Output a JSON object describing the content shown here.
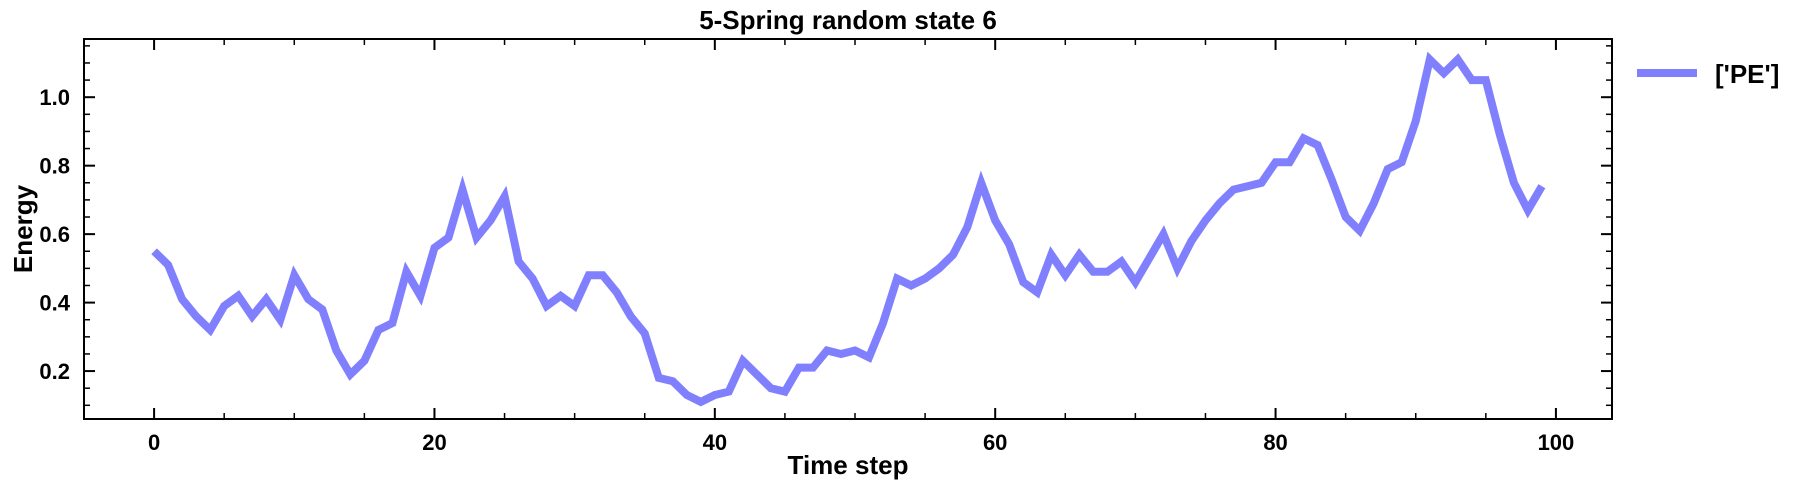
{
  "chart_data": {
    "type": "line",
    "title": "5-Spring random state 6",
    "xlabel": "Time step",
    "ylabel": "Energy",
    "xlim": [
      -5,
      104
    ],
    "ylim": [
      0.06,
      1.17
    ],
    "xticks": [
      0,
      20,
      40,
      60,
      80,
      100
    ],
    "yticks": [
      0.2,
      0.4,
      0.6,
      0.8,
      1.0
    ],
    "xtick_labels": [
      "0",
      "20",
      "40",
      "60",
      "80",
      "100"
    ],
    "ytick_labels": [
      "0.2",
      "0.4",
      "0.6",
      "0.8",
      "1.0"
    ],
    "grid": false,
    "legend": {
      "placement": "outside-top-right",
      "entries": [
        "['PE']"
      ]
    },
    "series": [
      {
        "name": "['PE']",
        "color": "#8080ff",
        "x": [
          0,
          1,
          2,
          3,
          4,
          5,
          6,
          7,
          8,
          9,
          10,
          11,
          12,
          13,
          14,
          15,
          16,
          17,
          18,
          19,
          20,
          21,
          22,
          23,
          24,
          25,
          26,
          27,
          28,
          29,
          30,
          31,
          32,
          33,
          34,
          35,
          36,
          37,
          38,
          39,
          40,
          41,
          42,
          43,
          44,
          45,
          46,
          47,
          48,
          49,
          50,
          51,
          52,
          53,
          54,
          55,
          56,
          57,
          58,
          59,
          60,
          61,
          62,
          63,
          64,
          65,
          66,
          67,
          68,
          69,
          70,
          71,
          72,
          73,
          74,
          75,
          76,
          77,
          78,
          79,
          80,
          81,
          82,
          83,
          84,
          85,
          86,
          87,
          88,
          89,
          90,
          91,
          92,
          93,
          94,
          95,
          96,
          97,
          98,
          99
        ],
        "values": [
          0.55,
          0.51,
          0.41,
          0.36,
          0.32,
          0.39,
          0.42,
          0.36,
          0.41,
          0.35,
          0.48,
          0.41,
          0.38,
          0.26,
          0.19,
          0.23,
          0.32,
          0.34,
          0.49,
          0.42,
          0.56,
          0.59,
          0.73,
          0.59,
          0.64,
          0.71,
          0.52,
          0.47,
          0.39,
          0.42,
          0.39,
          0.48,
          0.48,
          0.43,
          0.36,
          0.31,
          0.18,
          0.17,
          0.13,
          0.11,
          0.13,
          0.14,
          0.23,
          0.19,
          0.15,
          0.14,
          0.21,
          0.21,
          0.26,
          0.25,
          0.26,
          0.24,
          0.34,
          0.47,
          0.45,
          0.47,
          0.5,
          0.54,
          0.62,
          0.75,
          0.64,
          0.57,
          0.46,
          0.43,
          0.54,
          0.48,
          0.54,
          0.49,
          0.49,
          0.52,
          0.46,
          0.53,
          0.6,
          0.5,
          0.58,
          0.64,
          0.69,
          0.73,
          0.74,
          0.75,
          0.81,
          0.81,
          0.88,
          0.86,
          0.76,
          0.65,
          0.61,
          0.69,
          0.79,
          0.81,
          0.93,
          1.11,
          1.07,
          1.11,
          1.05,
          1.05,
          0.89,
          0.75,
          0.67,
          0.74
        ]
      }
    ]
  }
}
